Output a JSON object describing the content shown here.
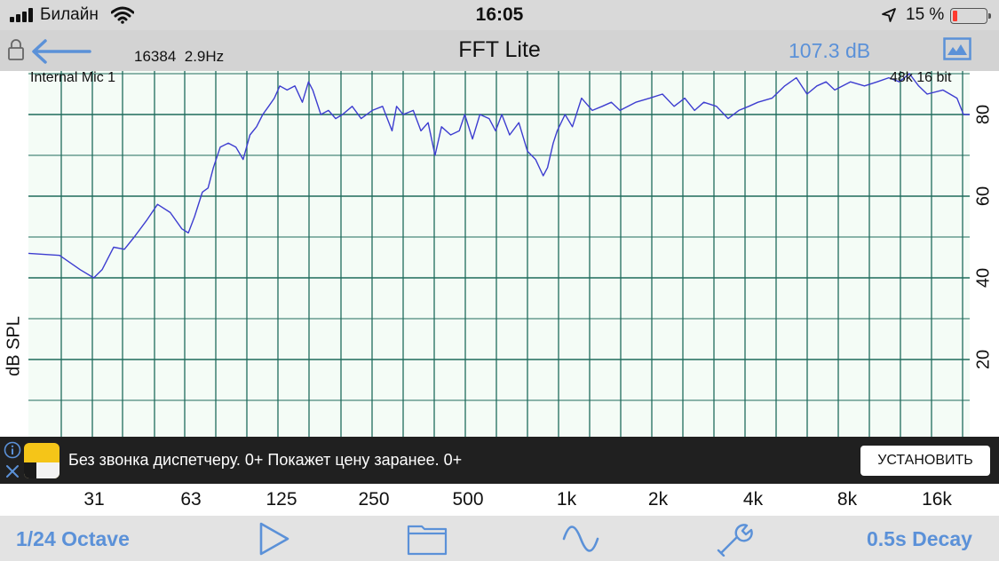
{
  "status_bar": {
    "carrier": "Билайн",
    "time": "16:05",
    "battery_text": "15 %",
    "battery_level": 0.15,
    "battery_color": "#ff3b30",
    "icons": [
      "signal-icon",
      "wifi-icon",
      "location-arrow-icon",
      "battery-icon"
    ]
  },
  "header": {
    "fft_size": "16384",
    "resolution": "2.9Hz",
    "title": "FFT Lite",
    "level": "107.3 dB",
    "accent_color": "#5b91d8",
    "icons": [
      "lock-icon",
      "back-arrow-icon",
      "image-icon"
    ]
  },
  "chart_data": {
    "type": "line",
    "ylabel": "dB SPL",
    "input_label": "Internal Mic 1",
    "format_label": "48k 16 bit",
    "y_ticks": [
      "80",
      "60",
      "40",
      "20"
    ],
    "ylim": [
      0,
      88
    ],
    "x_scale": "log",
    "xlim": [
      19,
      22000
    ],
    "x_ticks": [
      "31",
      "63",
      "125",
      "250",
      "500",
      "1k",
      "2k",
      "4k",
      "8k",
      "16k"
    ],
    "grid": true,
    "grid_color": "#1f6b5c",
    "background_color": "#f4fcf6",
    "line_color": "#3d3dd0",
    "series": [
      {
        "x": [
          19,
          24,
          28,
          31,
          33,
          36,
          39,
          42,
          46,
          50,
          55,
          60,
          63,
          66,
          70,
          73,
          76,
          80,
          85,
          90,
          95,
          100,
          105,
          110,
          115,
          120,
          125,
          132,
          140,
          148,
          155,
          160,
          170,
          180,
          190,
          200,
          215,
          230,
          250,
          270,
          290,
          300,
          315,
          340,
          360,
          380,
          400,
          420,
          450,
          480,
          500,
          530,
          560,
          600,
          630,
          660,
          700,
          750,
          800,
          850,
          900,
          930,
          970,
          1000,
          1060,
          1120,
          1200,
          1300,
          1400,
          1500,
          1600,
          1800,
          2000,
          2200,
          2400,
          2600,
          2800,
          3000,
          3300,
          3600,
          3900,
          4200,
          4500,
          5000,
          5500,
          6000,
          6500,
          7000,
          7500,
          8000,
          9000,
          10000,
          11000,
          12000,
          13000,
          14000,
          15000,
          16000,
          18000,
          20000,
          21000,
          22000
        ],
        "values": [
          46,
          45.5,
          42,
          40,
          42,
          47.5,
          47,
          50,
          54,
          58,
          56,
          52,
          51,
          55,
          61,
          62,
          67,
          72,
          73,
          72,
          69,
          75,
          77,
          80,
          82,
          84,
          87,
          86,
          87,
          83,
          88,
          86,
          80,
          81,
          79,
          80,
          82,
          79,
          81,
          82,
          76,
          82,
          80,
          81,
          76,
          78,
          70,
          77,
          75,
          76,
          80,
          74,
          80,
          79,
          76,
          80,
          75,
          78,
          71,
          69,
          65,
          67,
          73,
          76,
          80,
          77,
          84,
          81,
          82,
          83,
          81,
          83,
          84,
          85,
          82,
          84,
          81,
          83,
          82,
          79,
          81,
          82,
          83,
          84,
          87,
          89,
          85,
          87,
          88,
          86,
          88,
          87,
          88,
          89,
          88,
          90,
          87,
          85,
          86,
          84,
          80,
          80
        ]
      }
    ]
  },
  "ad": {
    "text": "Без звонка диспетчеру. 0+ Покажет цену заранее. 0+",
    "button_label": "УСТАНОВИТЬ",
    "icons": [
      "ad-info-icon",
      "ad-close-icon",
      "ad-app-logo"
    ]
  },
  "toolbar": {
    "octave_label": "1/24 Octave",
    "decay_label": "0.5s Decay",
    "icons": [
      "play-icon",
      "folder-icon",
      "waveform-icon",
      "settings-wrench-icon"
    ]
  }
}
